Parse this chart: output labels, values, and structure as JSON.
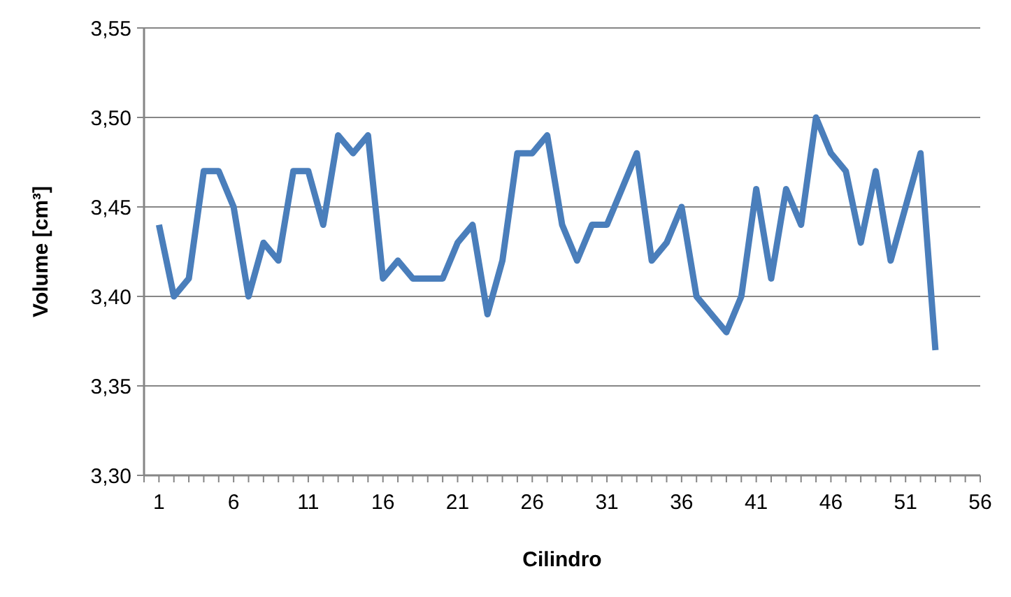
{
  "chart_data": {
    "type": "line",
    "xlabel": "Cilindro",
    "ylabel": "Volume [cm³]",
    "x": [
      1,
      2,
      3,
      4,
      5,
      6,
      7,
      8,
      9,
      10,
      11,
      12,
      13,
      14,
      15,
      16,
      17,
      18,
      19,
      20,
      21,
      22,
      23,
      24,
      25,
      26,
      27,
      28,
      29,
      30,
      31,
      32,
      33,
      34,
      35,
      36,
      37,
      38,
      39,
      40,
      41,
      42,
      43,
      44,
      45,
      46,
      47,
      48,
      49,
      50,
      51,
      52,
      53
    ],
    "series": [
      {
        "color": "#4a7ebb",
        "values": [
          3.44,
          3.4,
          3.41,
          3.47,
          3.47,
          3.45,
          3.4,
          3.43,
          3.42,
          3.47,
          3.47,
          3.44,
          3.49,
          3.48,
          3.49,
          3.41,
          3.42,
          3.41,
          3.41,
          3.41,
          3.43,
          3.44,
          3.39,
          3.42,
          3.48,
          3.48,
          3.49,
          3.44,
          3.42,
          3.44,
          3.44,
          3.46,
          3.48,
          3.42,
          3.43,
          3.45,
          3.4,
          3.39,
          3.38,
          3.4,
          3.46,
          3.41,
          3.46,
          3.44,
          3.5,
          3.48,
          3.47,
          3.43,
          3.47,
          3.42,
          3.45,
          3.48,
          3.37
        ]
      }
    ],
    "xlim": [
      0,
      56
    ],
    "xticks": [
      {
        "value": 0,
        "label": null
      },
      1,
      {
        "value": 2,
        "label": null
      },
      {
        "value": 3,
        "label": null
      },
      {
        "value": 4,
        "label": null
      },
      {
        "value": 5,
        "label": null
      },
      6,
      {
        "value": 7,
        "label": null
      },
      {
        "value": 8,
        "label": null
      },
      {
        "value": 9,
        "label": null
      },
      {
        "value": 10,
        "label": null
      },
      11,
      {
        "value": 12,
        "label": null
      },
      {
        "value": 13,
        "label": null
      },
      {
        "value": 14,
        "label": null
      },
      {
        "value": 15,
        "label": null
      },
      16,
      {
        "value": 17,
        "label": null
      },
      {
        "value": 18,
        "label": null
      },
      {
        "value": 19,
        "label": null
      },
      {
        "value": 20,
        "label": null
      },
      21,
      {
        "value": 22,
        "label": null
      },
      {
        "value": 23,
        "label": null
      },
      {
        "value": 24,
        "label": null
      },
      {
        "value": 25,
        "label": null
      },
      26,
      {
        "value": 27,
        "label": null
      },
      {
        "value": 28,
        "label": null
      },
      {
        "value": 29,
        "label": null
      },
      {
        "value": 30,
        "label": null
      },
      31,
      {
        "value": 32,
        "label": null
      },
      {
        "value": 33,
        "label": null
      },
      {
        "value": 34,
        "label": null
      },
      {
        "value": 35,
        "label": null
      },
      36,
      {
        "value": 37,
        "label": null
      },
      {
        "value": 38,
        "label": null
      },
      {
        "value": 39,
        "label": null
      },
      {
        "value": 40,
        "label": null
      },
      41,
      {
        "value": 42,
        "label": null
      },
      {
        "value": 43,
        "label": null
      },
      {
        "value": 44,
        "label": null
      },
      {
        "value": 45,
        "label": null
      },
      46,
      {
        "value": 47,
        "label": null
      },
      {
        "value": 48,
        "label": null
      },
      {
        "value": 49,
        "label": null
      },
      {
        "value": 50,
        "label": null
      },
      51,
      {
        "value": 52,
        "label": null
      },
      {
        "value": 53,
        "label": null
      },
      {
        "value": 54,
        "label": null
      },
      {
        "value": 55,
        "label": null
      },
      56
    ],
    "ylim": [
      3.3,
      3.55
    ],
    "yticks": [
      {
        "value": 3.3,
        "label": "3,30"
      },
      {
        "value": 3.35,
        "label": "3,35"
      },
      {
        "value": 3.4,
        "label": "3,40"
      },
      {
        "value": 3.45,
        "label": "3,45"
      },
      {
        "value": 3.5,
        "label": "3,50"
      },
      {
        "value": 3.55,
        "label": "3,55"
      }
    ],
    "grid": "y",
    "marker": "none",
    "line_style": "solid"
  }
}
